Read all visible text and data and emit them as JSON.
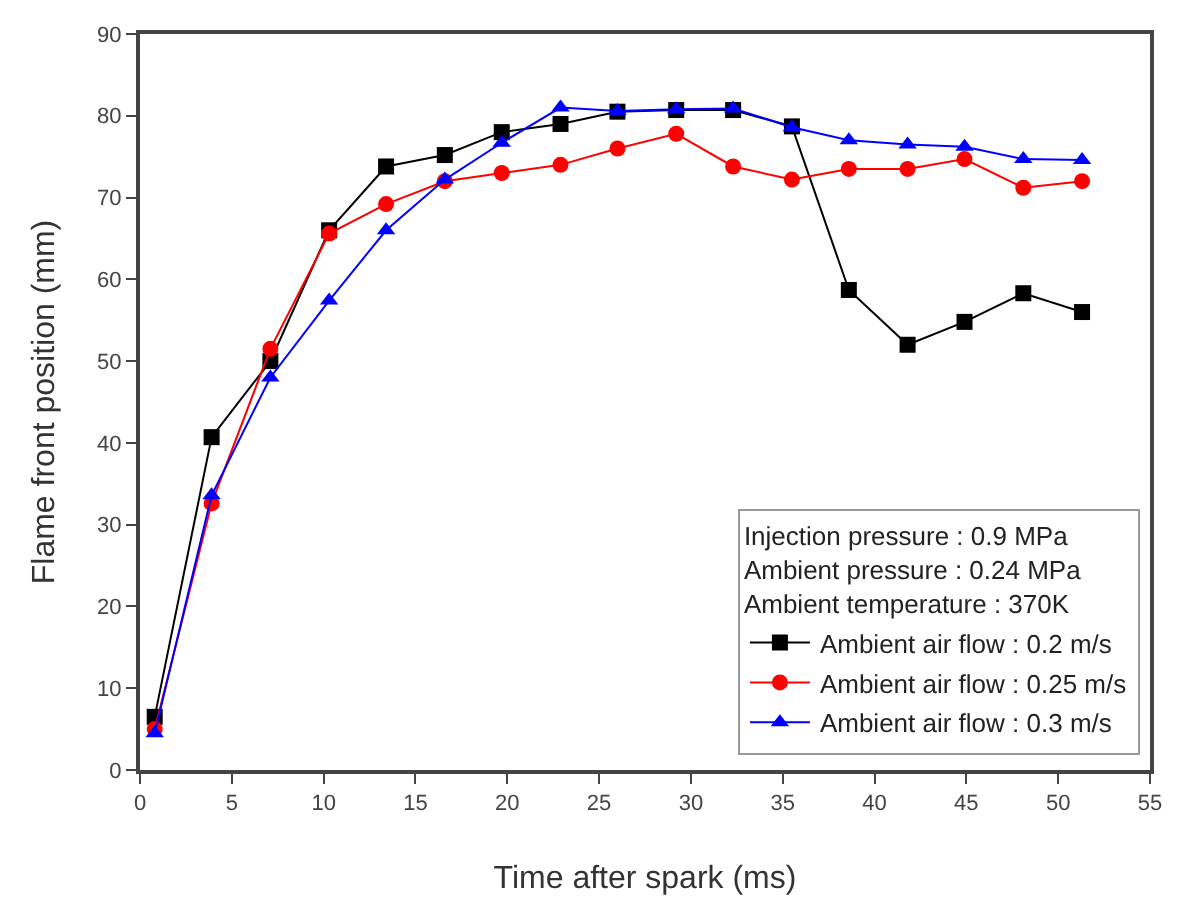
{
  "chart_data": {
    "type": "line",
    "xlabel": "Time after spark (ms)",
    "ylabel": "Flame front position (mm)",
    "legend_title": "Injection pressure : 0.9 MPa\nAmbient pressure : 0.24 MPa\nAmbient temperature : 370K",
    "x": [
      0.8,
      3.9,
      7.1,
      10.3,
      13.4,
      16.6,
      19.7,
      22.9,
      26.0,
      29.2,
      32.3,
      35.5,
      38.6,
      41.8,
      44.9,
      48.1,
      51.3
    ],
    "series": [
      {
        "name": "Ambient air flow : 0.2 m/s",
        "color": "#000000",
        "marker": "square",
        "values": [
          6.5,
          40.7,
          50,
          66,
          73.8,
          75.2,
          78,
          79,
          80.5,
          80.7,
          80.7,
          78.7,
          58.7,
          52,
          54.8,
          58.3,
          56
        ]
      },
      {
        "name": "Ambient air flow : 0.25 m/s",
        "color": "#ff0000",
        "marker": "circle",
        "values": [
          5,
          32.6,
          51.5,
          65.6,
          69.2,
          72,
          73,
          74,
          76,
          77.8,
          73.8,
          72.2,
          73.5,
          73.5,
          74.7,
          71.2,
          72
        ]
      },
      {
        "name": "Ambient air flow : 0.3 m/s",
        "color": "#0000ff",
        "marker": "triangle",
        "values": [
          4.5,
          33.6,
          48,
          57.4,
          66,
          72.2,
          76.7,
          81,
          80.6,
          80.8,
          80.9,
          78.6,
          77,
          76.5,
          76.2,
          74.7,
          74.6
        ]
      }
    ],
    "xlim": [
      0,
      55
    ],
    "xticks": [
      0,
      5,
      10,
      15,
      20,
      25,
      30,
      35,
      40,
      45,
      50,
      55
    ],
    "ylim": [
      0,
      90
    ],
    "yticks": [
      0,
      10,
      20,
      30,
      40,
      50,
      60,
      70,
      80,
      90
    ],
    "grid": false,
    "legend": "bottom right",
    "line_style": "solid"
  }
}
